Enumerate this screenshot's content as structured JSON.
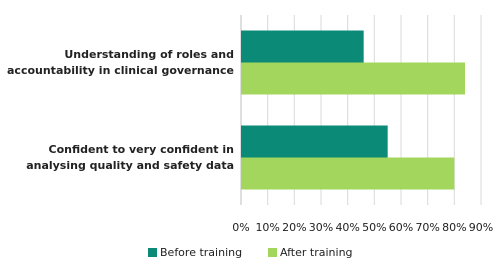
{
  "chart_data": {
    "type": "hbar",
    "categories": [
      "Understanding of roles and accountability in clinical governance",
      "Confident to very confident in analysing quality and safety data"
    ],
    "series": [
      {
        "name": "Before training",
        "color": "#0b8a77",
        "values": [
          46,
          55
        ]
      },
      {
        "name": "After training",
        "color": "#a3d65c",
        "values": [
          84,
          80
        ]
      }
    ],
    "xlim": [
      0,
      90
    ],
    "xticks": [
      {
        "value": 0,
        "label": "0%"
      },
      {
        "value": 10,
        "label": "10%"
      },
      {
        "value": 20,
        "label": "20%"
      },
      {
        "value": 30,
        "label": "30%"
      },
      {
        "value": 40,
        "label": "40%"
      },
      {
        "value": 50,
        "label": "50%"
      },
      {
        "value": 60,
        "label": "60%"
      },
      {
        "value": 70,
        "label": "70%"
      },
      {
        "value": 80,
        "label": "80%"
      },
      {
        "value": 90,
        "label": "90%"
      }
    ],
    "grid": true
  }
}
